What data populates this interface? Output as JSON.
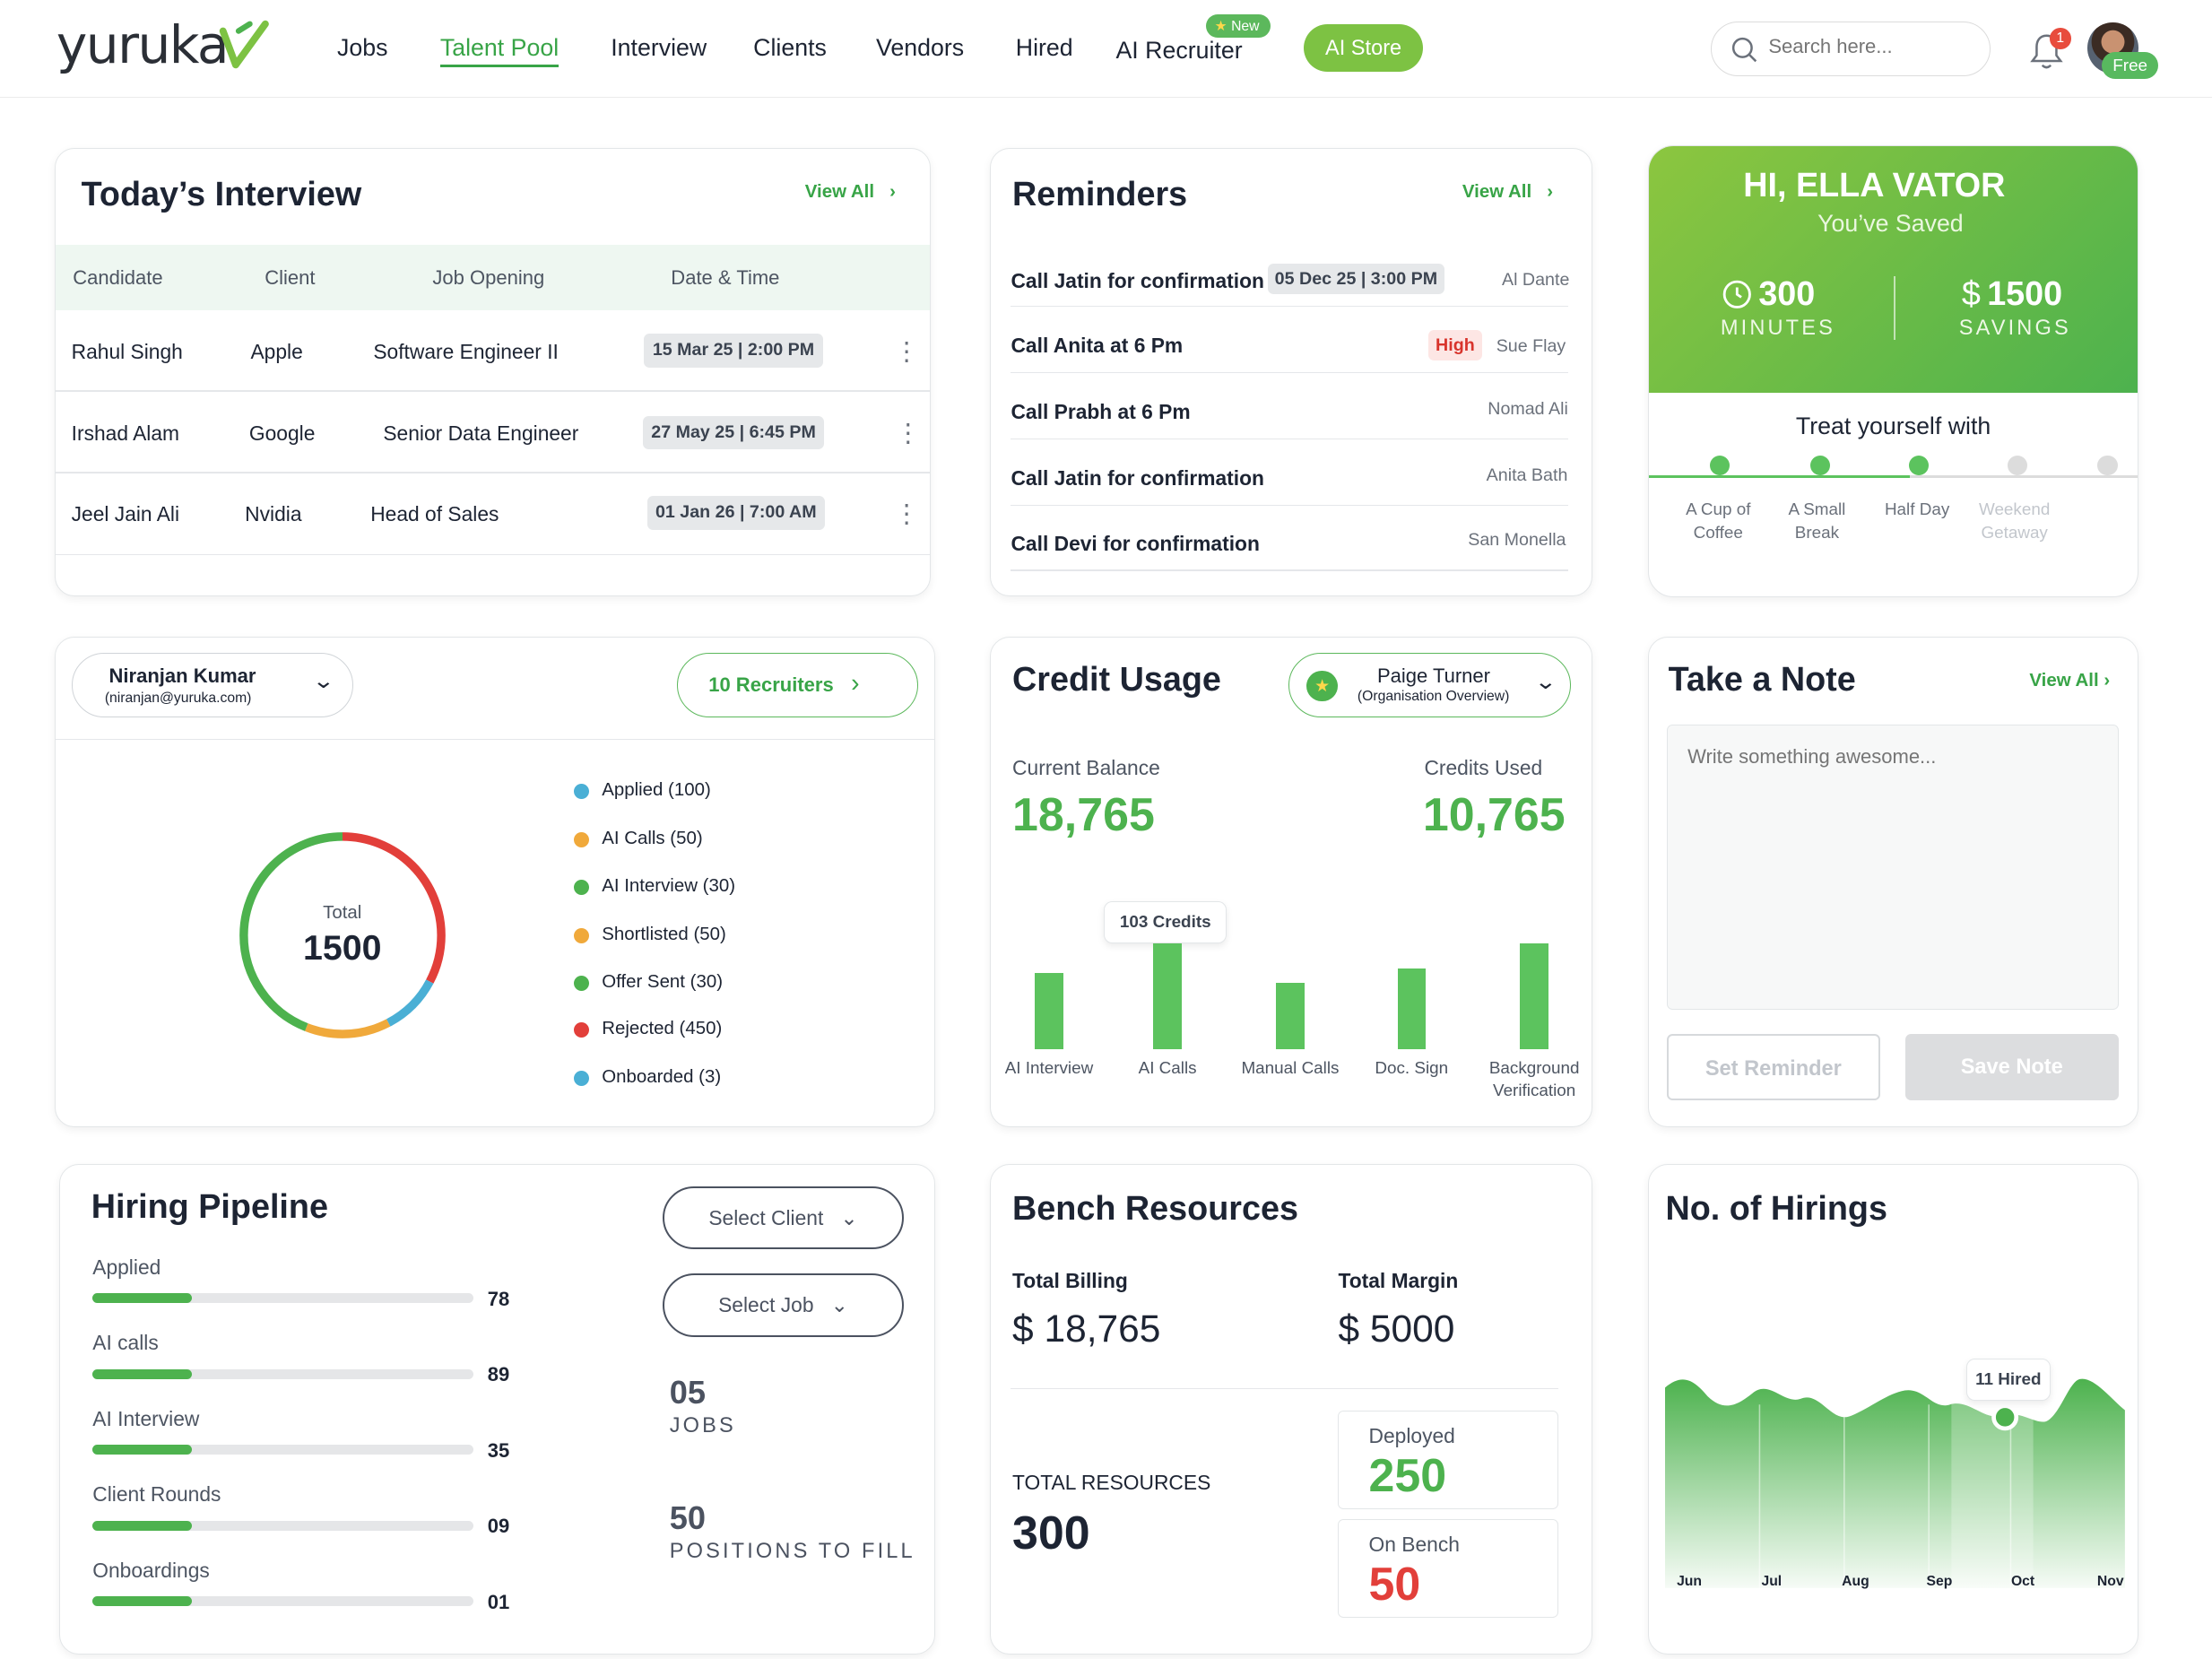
{
  "header": {
    "logo": "yuruka",
    "nav": [
      "Jobs",
      "Talent Pool",
      "Interview",
      "Clients",
      "Vendors",
      "Hired",
      "AI Recruiter"
    ],
    "active_nav": "Talent Pool",
    "new_badge": "New",
    "ai_store": "AI Store",
    "search_placeholder": "Search here...",
    "notification_count": "1",
    "plan_badge": "Free"
  },
  "interview": {
    "title": "Today’s Interview",
    "view_all": "View All",
    "columns": [
      "Candidate",
      "Client",
      "Job Opening",
      "Date & Time"
    ],
    "rows": [
      {
        "candidate": "Rahul Singh",
        "client": "Apple",
        "job": "Software Engineer II",
        "datetime": "15 Mar 25 | 2:00 PM"
      },
      {
        "candidate": "Irshad Alam",
        "client": "Google",
        "job": "Senior Data Engineer",
        "datetime": "27 May 25 | 6:45 PM"
      },
      {
        "candidate": "Jeel Jain Ali",
        "client": "Nvidia",
        "job": "Head of Sales",
        "datetime": "01 Jan 26 | 7:00 AM"
      }
    ]
  },
  "reminders": {
    "title": "Reminders",
    "view_all": "View All",
    "items": [
      {
        "text": "Call Jatin for confirmation",
        "tag": "05 Dec 25 | 3:00 PM",
        "name": "Al Dante"
      },
      {
        "text": "Call Anita at 6 Pm",
        "tag": "High",
        "name": "Sue Flay"
      },
      {
        "text": "Call Prabh at 6 Pm",
        "tag": "",
        "name": "Nomad Ali"
      },
      {
        "text": "Call Jatin for confirmation",
        "tag": "",
        "name": "Anita Bath"
      },
      {
        "text": "Call Devi for confirmation",
        "tag": "",
        "name": "San Monella"
      }
    ]
  },
  "savings": {
    "greeting": "HI, ELLA VATOR",
    "subtitle": "You’ve Saved",
    "minutes_value": "300",
    "minutes_label": "MINUTES",
    "savings_currency": "$",
    "savings_value": "1500",
    "savings_label": "SAVINGS",
    "treat_title": "Treat yourself with",
    "steps": [
      {
        "label": "A Cup of Coffee",
        "done": true
      },
      {
        "label": "A Small Break",
        "done": true
      },
      {
        "label": "Half Day",
        "done": true
      },
      {
        "label": "Weekend Getaway",
        "done": false
      },
      {
        "label": "",
        "done": false
      }
    ]
  },
  "funnel": {
    "recruiter_name": "Niranjan Kumar",
    "recruiter_email": "(niranjan@yuruka.com)",
    "recruiters_button": "10 Recruiters",
    "total_label": "Total",
    "total_value": "1500",
    "legend": [
      {
        "label": "Applied (100)",
        "color": "#4aafd5"
      },
      {
        "label": "AI Calls (50)",
        "color": "#f0a93b"
      },
      {
        "label": "AI Interview (30)",
        "color": "#4db24e"
      },
      {
        "label": "Shortlisted (50)",
        "color": "#f0a93b"
      },
      {
        "label": "Offer Sent (30)",
        "color": "#4db24e"
      },
      {
        "label": "Rejected (450)",
        "color": "#e23f3a"
      },
      {
        "label": "Onboarded (3)",
        "color": "#4aafd5"
      }
    ]
  },
  "credit": {
    "title": "Credit Usage",
    "org_user": "Paige Turner",
    "org_sub": "(Organisation Overview)",
    "balance_label": "Current Balance",
    "balance_value": "18,765",
    "used_label": "Credits Used",
    "used_value": "10,765",
    "tooltip": "103 Credits",
    "bars": [
      {
        "label": "AI Interview",
        "value": 0.72
      },
      {
        "label": "AI Calls",
        "value": 1.0
      },
      {
        "label": "Manual Calls",
        "value": 0.63
      },
      {
        "label": "Doc. Sign",
        "value": 0.76
      },
      {
        "label": "Background Verification",
        "value": 1.0
      }
    ]
  },
  "note": {
    "title": "Take a Note",
    "view_all": "View All",
    "placeholder": "Write something awesome...",
    "set_reminder": "Set Reminder",
    "save_note": "Save Note"
  },
  "pipeline": {
    "title": "Hiring Pipeline",
    "select_client": "Select Client",
    "select_job": "Select Job",
    "jobs_value": "05",
    "jobs_label": "JOBS",
    "positions_value": "50",
    "positions_label": "POSITIONS TO FILL",
    "stages": [
      {
        "label": "Applied",
        "value": "78",
        "fill": 0.26
      },
      {
        "label": "AI calls",
        "value": "89",
        "fill": 0.26
      },
      {
        "label": "AI Interview",
        "value": "35",
        "fill": 0.26
      },
      {
        "label": "Client Rounds",
        "value": "09",
        "fill": 0.26
      },
      {
        "label": "Onboardings",
        "value": "01",
        "fill": 0.26
      }
    ]
  },
  "bench": {
    "title": "Bench Resources",
    "billing_label": "Total Billing",
    "billing_value": "$ 18,765",
    "margin_label": "Total Margin",
    "margin_value": "$ 5000",
    "resources_label": "TOTAL RESOURCES",
    "resources_value": "300",
    "deployed_label": "Deployed",
    "deployed_value": "250",
    "bench_label": "On Bench",
    "bench_value": "50"
  },
  "hirings": {
    "title": "No. of Hirings",
    "tooltip": "11 Hired",
    "months": [
      "Jun",
      "Jul",
      "Aug",
      "Sep",
      "Oct",
      "Nov"
    ]
  },
  "colors": {
    "accent": "#4db24e",
    "danger": "#e23f3a",
    "orange": "#f0a93b",
    "blue": "#4aafd5"
  }
}
